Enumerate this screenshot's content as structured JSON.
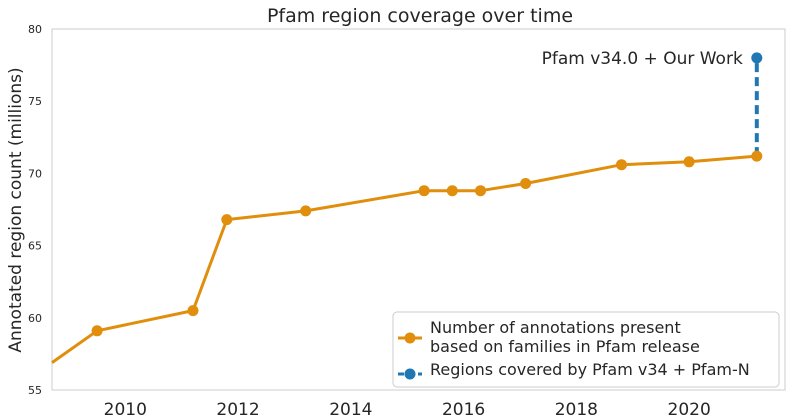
{
  "chart_data": {
    "type": "line",
    "title": "Pfam region coverage over time",
    "xlabel": "",
    "ylabel": "Annotated region count (millions)",
    "xlim": [
      2008.7,
      2021.7
    ],
    "ylim": [
      55,
      80
    ],
    "x_ticks": [
      "2010",
      "2012",
      "2014",
      "2016",
      "2018",
      "2020"
    ],
    "y_ticks": [
      "55",
      "60",
      "65",
      "70",
      "75",
      "80"
    ],
    "grid": false,
    "legend_position": "lower-right",
    "series": [
      {
        "name": "Number of annotations present based on families in Pfam release",
        "color": "#e08e0b",
        "marker": "circle",
        "style": "solid",
        "points": [
          [
            2008.7,
            56.9
          ],
          [
            2009.5,
            59.1
          ],
          [
            2011.2,
            60.5
          ],
          [
            2011.8,
            66.8
          ],
          [
            2013.2,
            67.4
          ],
          [
            2015.3,
            68.8
          ],
          [
            2015.8,
            68.8
          ],
          [
            2016.3,
            68.8
          ],
          [
            2017.1,
            69.3
          ],
          [
            2018.8,
            70.6
          ],
          [
            2020.0,
            70.8
          ],
          [
            2021.2,
            71.2
          ]
        ]
      },
      {
        "name": "Regions covered by Pfam v34 + Pfam-N",
        "color": "#1f77b4",
        "marker": "circle",
        "style": "dashed",
        "points": [
          [
            2021.2,
            71.2
          ],
          [
            2021.2,
            78.0
          ]
        ]
      }
    ],
    "annotations": [
      {
        "text": "Pfam v34.0 + Our Work",
        "x": 2021.2,
        "y": 78.0
      }
    ],
    "legend": {
      "entries": [
        {
          "lines": [
            "Number of annotations present",
            "based on families in Pfam release"
          ]
        },
        {
          "lines": [
            "Regions covered by Pfam v34 + Pfam-N"
          ]
        }
      ]
    }
  }
}
